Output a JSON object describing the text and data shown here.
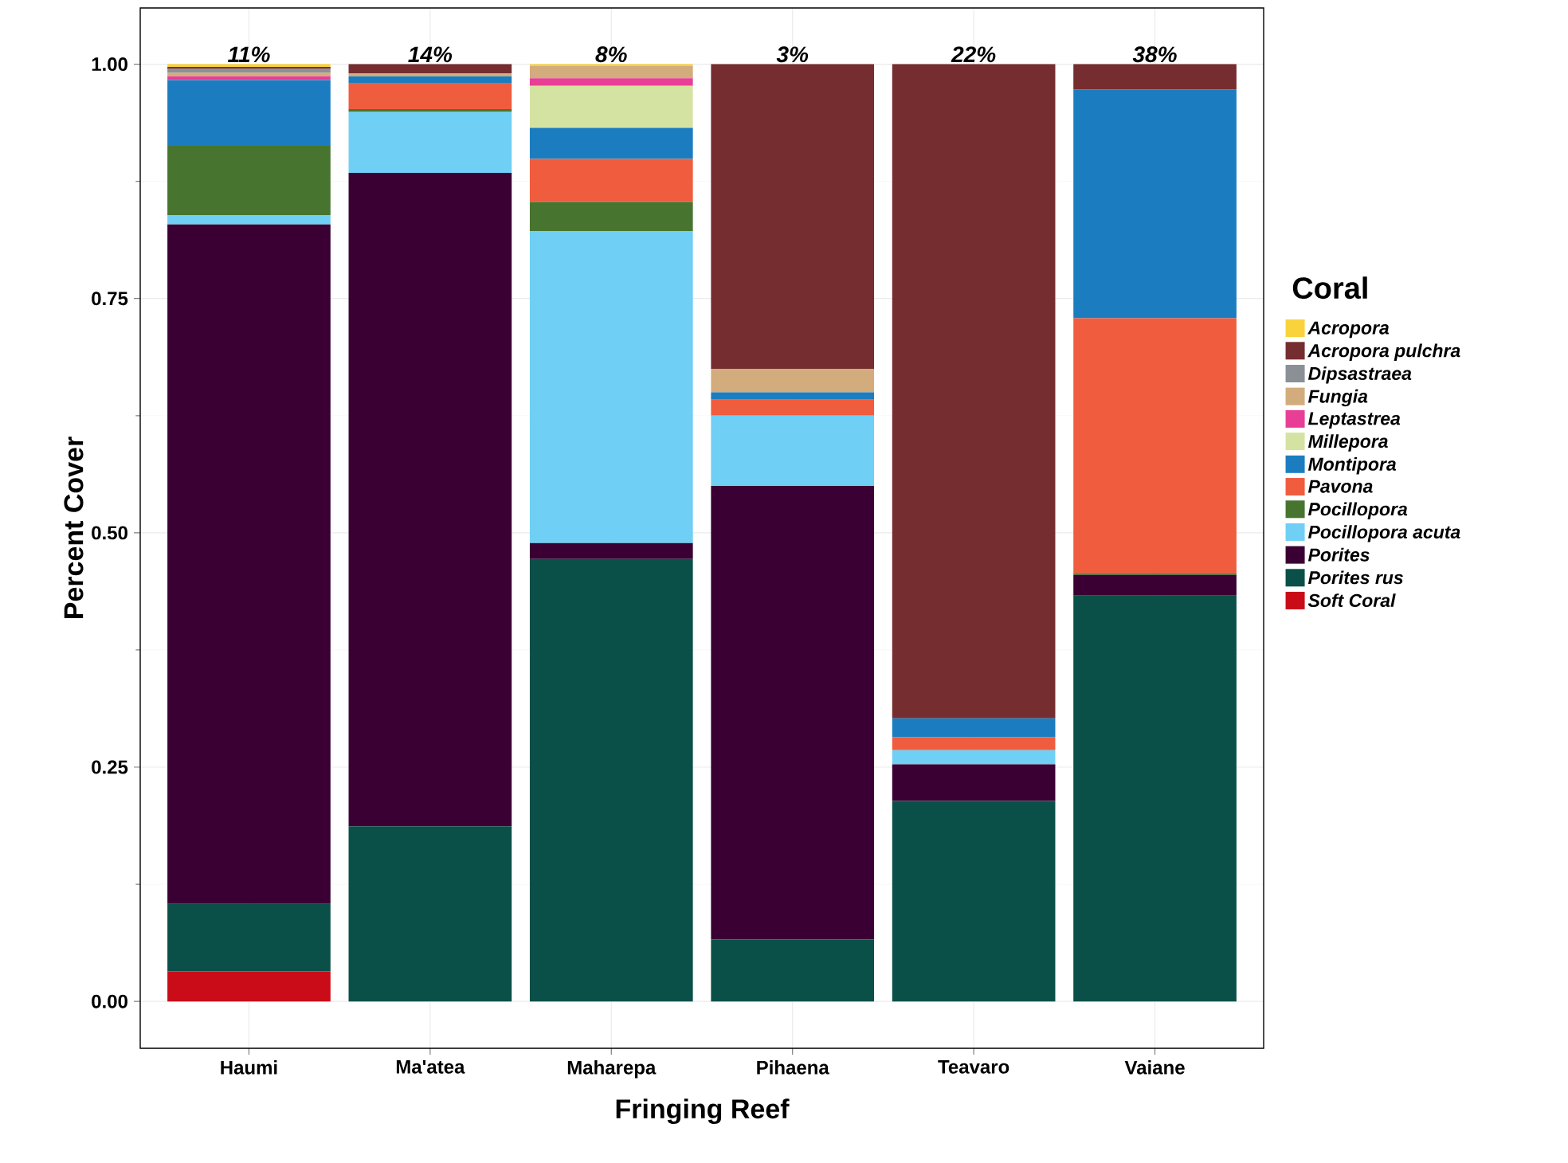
{
  "chart_data": {
    "type": "bar",
    "stacked": true,
    "xlabel": "Fringing Reef",
    "ylabel": "Percent Cover",
    "legend_title": "Coral",
    "legend": "right",
    "grid": true,
    "categories": [
      "Haumi",
      "Ma'atea",
      "Maharepa",
      "Pihaena",
      "Teavaro",
      "Vaiane"
    ],
    "ylim": [
      -0.05,
      1.06
    ],
    "yticks": [
      {
        "value": 0,
        "label": "0.00"
      },
      {
        "value": 0.25,
        "label": "0.25"
      },
      {
        "value": 0.5,
        "label": "0.50"
      },
      {
        "value": 0.75,
        "label": "0.75"
      },
      {
        "value": 1,
        "label": "1.00"
      }
    ],
    "series": [
      {
        "name": "Soft Coral",
        "color": "#c90c17",
        "values": [
          0.032,
          0,
          0,
          0,
          0,
          0
        ]
      },
      {
        "name": "Porites rus",
        "color": "#0a5048",
        "values": [
          0.072,
          0.187,
          0.472,
          0.066,
          0.214,
          0.433
        ]
      },
      {
        "name": "Porites",
        "color": "#3a0033",
        "values": [
          0.725,
          0.697,
          0.017,
          0.484,
          0.039,
          0.022
        ]
      },
      {
        "name": "Pocillopora acuta",
        "color": "#6fcff5",
        "values": [
          0.01,
          0.065,
          0.333,
          0.075,
          0.015,
          0
        ]
      },
      {
        "name": "Pocillopora",
        "color": "#47752f",
        "values": [
          0.074,
          0.003,
          0.031,
          0,
          0,
          0.002
        ]
      },
      {
        "name": "Pavona",
        "color": "#f05c3e",
        "values": [
          0,
          0.028,
          0.046,
          0.017,
          0.014,
          0.272
        ]
      },
      {
        "name": "Montipora",
        "color": "#1b7dc0",
        "values": [
          0.07,
          0.007,
          0.033,
          0.008,
          0.02,
          0.244
        ]
      },
      {
        "name": "Millepora",
        "color": "#d5e3a2",
        "values": [
          0,
          0,
          0.045,
          0,
          0,
          0
        ]
      },
      {
        "name": "Leptastrea",
        "color": "#e83e96",
        "values": [
          0.004,
          0,
          0.008,
          0,
          0,
          0
        ]
      },
      {
        "name": "Fungia",
        "color": "#d2ac7c",
        "values": [
          0.004,
          0.003,
          0.013,
          0.025,
          0,
          0
        ]
      },
      {
        "name": "Dipsastraea",
        "color": "#8a9096",
        "values": [
          0.004,
          0,
          0,
          0,
          0,
          0
        ]
      },
      {
        "name": "Acropora pulchra",
        "color": "#762d2f",
        "values": [
          0.002,
          0.01,
          0,
          0.325,
          0.698,
          0.027
        ]
      },
      {
        "name": "Acropora",
        "color": "#f9d23c",
        "values": [
          0.003,
          0,
          0.002,
          0,
          0,
          0
        ]
      }
    ],
    "annotations": [
      {
        "text": "11%",
        "x": "Haumi",
        "y": 1
      },
      {
        "text": "14%",
        "x": "Ma'atea",
        "y": 1
      },
      {
        "text": "8%",
        "x": "Maharepa",
        "y": 1
      },
      {
        "text": "3%",
        "x": "Pihaena",
        "y": 1
      },
      {
        "text": "22%",
        "x": "Teavaro",
        "y": 1
      },
      {
        "text": "38%",
        "x": "Vaiane",
        "y": 1
      }
    ]
  }
}
